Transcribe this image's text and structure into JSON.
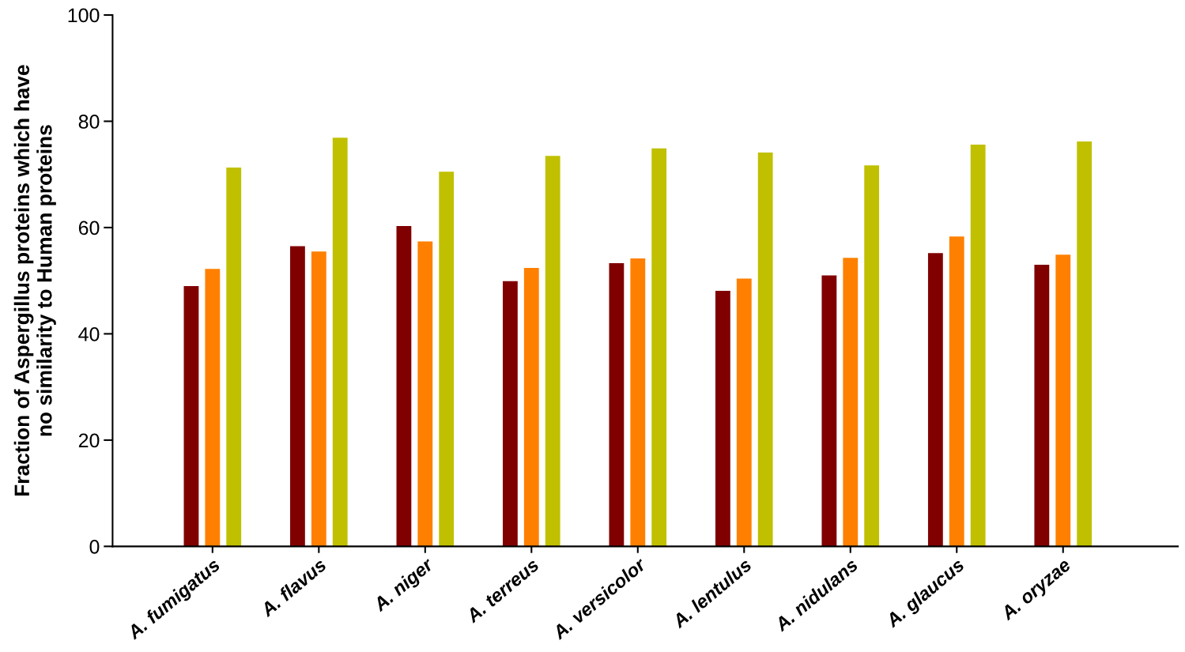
{
  "chart_data": {
    "type": "bar",
    "ylabel": "Fraction of Aspergillus proteins which have\nno similarity to Human proteins",
    "categories": [
      "A. fumigatus",
      "A. flavus",
      "A. niger",
      "A. terreus",
      "A. versicolor",
      "A. lentulus",
      "A. nidulans",
      "A. glaucus",
      "A. oryzae"
    ],
    "series": [
      {
        "color": "#800000",
        "values": [
          49.0,
          56.5,
          60.3,
          49.9,
          53.3,
          48.1,
          51.0,
          55.2,
          53.0
        ]
      },
      {
        "color": "#ff8000",
        "values": [
          52.2,
          55.5,
          57.4,
          52.4,
          54.2,
          50.4,
          54.3,
          58.3,
          54.9
        ]
      },
      {
        "color": "#c0c000",
        "values": [
          71.3,
          76.9,
          70.5,
          73.5,
          74.9,
          74.1,
          71.7,
          75.6,
          76.2
        ]
      }
    ],
    "ylim": [
      0,
      100
    ],
    "yticks": [
      0,
      20,
      40,
      60,
      80,
      100
    ],
    "grid": false
  }
}
